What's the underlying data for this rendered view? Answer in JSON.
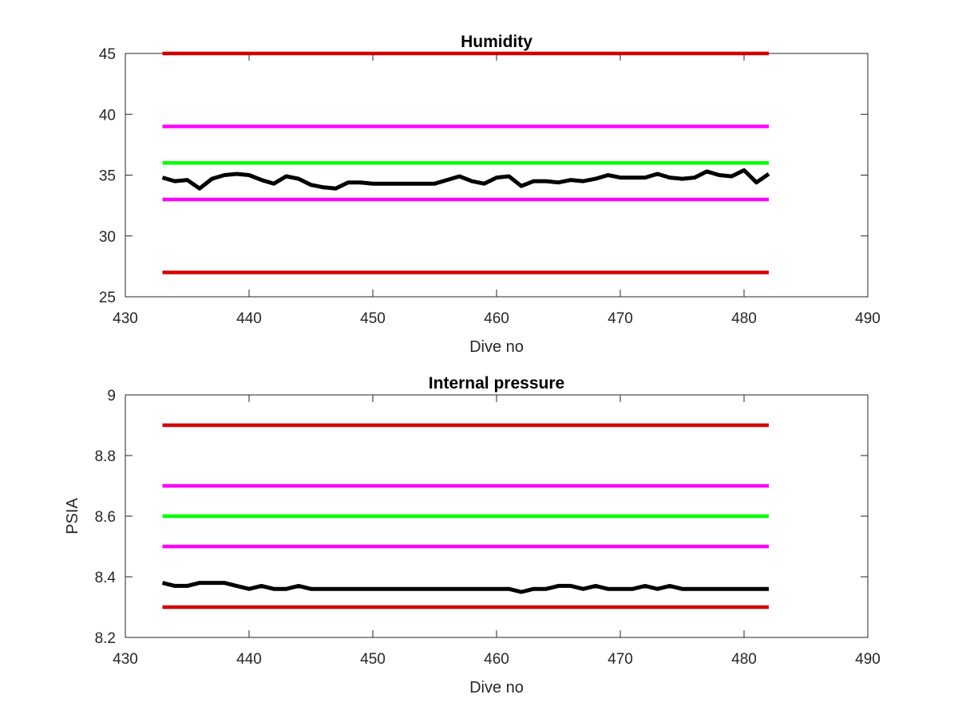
{
  "chart_data": [
    {
      "type": "line",
      "title": "Humidity",
      "xlabel": "Dive no",
      "ylabel": "",
      "xlim": [
        430,
        490
      ],
      "ylim": [
        25,
        45
      ],
      "xticks": [
        430,
        440,
        450,
        460,
        470,
        480,
        490
      ],
      "yticks": [
        25,
        30,
        35,
        40,
        45
      ],
      "grid": false,
      "series": [
        {
          "color": "#d40000",
          "x": [
            433,
            482
          ],
          "values": [
            45,
            45
          ]
        },
        {
          "color": "#ff00ff",
          "x": [
            433,
            482
          ],
          "values": [
            39,
            39
          ]
        },
        {
          "color": "#00ff00",
          "x": [
            433,
            482
          ],
          "values": [
            36,
            36
          ]
        },
        {
          "color": "#ff00ff",
          "x": [
            433,
            482
          ],
          "values": [
            33,
            33
          ]
        },
        {
          "color": "#d40000",
          "x": [
            433,
            482
          ],
          "values": [
            27,
            27
          ]
        },
        {
          "color": "#000000",
          "x": [
            433,
            434,
            435,
            436,
            437,
            438,
            439,
            440,
            441,
            442,
            443,
            444,
            445,
            446,
            447,
            448,
            449,
            450,
            451,
            452,
            453,
            454,
            455,
            456,
            457,
            458,
            459,
            460,
            461,
            462,
            463,
            464,
            465,
            466,
            467,
            468,
            469,
            470,
            471,
            472,
            473,
            474,
            475,
            476,
            477,
            478,
            479,
            480,
            481,
            482
          ],
          "values": [
            34.8,
            34.5,
            34.6,
            33.9,
            34.7,
            35.0,
            35.1,
            35.0,
            34.6,
            34.3,
            34.9,
            34.7,
            34.2,
            34.0,
            33.9,
            34.4,
            34.4,
            34.3,
            34.3,
            34.3,
            34.3,
            34.3,
            34.3,
            34.6,
            34.9,
            34.5,
            34.3,
            34.8,
            34.9,
            34.1,
            34.5,
            34.5,
            34.4,
            34.6,
            34.5,
            34.7,
            35.0,
            34.8,
            34.8,
            34.8,
            35.1,
            34.8,
            34.7,
            34.8,
            35.3,
            35.0,
            34.9,
            35.4,
            34.4,
            35.1
          ]
        }
      ]
    },
    {
      "type": "line",
      "title": "Internal pressure",
      "xlabel": "Dive no",
      "ylabel": "PSIA",
      "xlim": [
        430,
        490
      ],
      "ylim": [
        8.2,
        9.0
      ],
      "xticks": [
        430,
        440,
        450,
        460,
        470,
        480,
        490
      ],
      "yticks": [
        8.2,
        8.4,
        8.6,
        8.8,
        9.0
      ],
      "yticklabels": [
        "8.2",
        "8.4",
        "8.6",
        "8.8",
        "9"
      ],
      "grid": false,
      "series": [
        {
          "color": "#d40000",
          "x": [
            433,
            482
          ],
          "values": [
            8.9,
            8.9
          ]
        },
        {
          "color": "#ff00ff",
          "x": [
            433,
            482
          ],
          "values": [
            8.7,
            8.7
          ]
        },
        {
          "color": "#00ff00",
          "x": [
            433,
            482
          ],
          "values": [
            8.6,
            8.6
          ]
        },
        {
          "color": "#ff00ff",
          "x": [
            433,
            482
          ],
          "values": [
            8.5,
            8.5
          ]
        },
        {
          "color": "#d40000",
          "x": [
            433,
            482
          ],
          "values": [
            8.3,
            8.3
          ]
        },
        {
          "color": "#000000",
          "x": [
            433,
            434,
            435,
            436,
            437,
            438,
            439,
            440,
            441,
            442,
            443,
            444,
            445,
            446,
            447,
            448,
            449,
            450,
            451,
            452,
            453,
            454,
            455,
            456,
            457,
            458,
            459,
            460,
            461,
            462,
            463,
            464,
            465,
            466,
            467,
            468,
            469,
            470,
            471,
            472,
            473,
            474,
            475,
            476,
            477,
            478,
            479,
            480,
            481,
            482
          ],
          "values": [
            8.38,
            8.37,
            8.37,
            8.38,
            8.38,
            8.38,
            8.37,
            8.36,
            8.37,
            8.36,
            8.36,
            8.37,
            8.36,
            8.36,
            8.36,
            8.36,
            8.36,
            8.36,
            8.36,
            8.36,
            8.36,
            8.36,
            8.36,
            8.36,
            8.36,
            8.36,
            8.36,
            8.36,
            8.36,
            8.35,
            8.36,
            8.36,
            8.37,
            8.37,
            8.36,
            8.37,
            8.36,
            8.36,
            8.36,
            8.37,
            8.36,
            8.37,
            8.36,
            8.36,
            8.36,
            8.36,
            8.36,
            8.36,
            8.36,
            8.36
          ]
        }
      ]
    }
  ]
}
